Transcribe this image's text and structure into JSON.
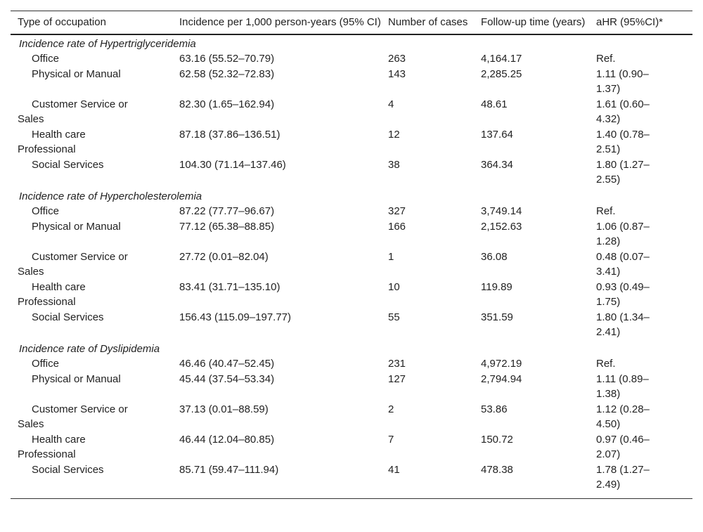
{
  "table": {
    "columns": [
      "Type of occupation",
      "Incidence per 1,000 person-years (95% CI)",
      "Number of cases",
      "Follow-up time (years)",
      "aHR (95%CI)*"
    ],
    "sections": [
      {
        "title": "Incidence rate of Hypertriglyceridemia",
        "rows": [
          [
            "Office",
            "63.16 (55.52–70.79)",
            "263",
            "4,164.17",
            "Ref."
          ],
          [
            "Physical or Manual",
            "62.58 (52.32–72.83)",
            "143",
            "2,285.25",
            "1.11 (0.90–1.37)"
          ],
          [
            "Customer Service or Sales",
            "82.30 (1.65–162.94)",
            "4",
            "48.61",
            "1.61 (0.60–4.32)"
          ],
          [
            "Health care Professional",
            "87.18 (37.86–136.51)",
            "12",
            "137.64",
            "1.40 (0.78–2.51)"
          ],
          [
            "Social Services",
            "104.30 (71.14–137.46)",
            "38",
            "364.34",
            "1.80 (1.27–2.55)"
          ]
        ]
      },
      {
        "title": "Incidence rate of Hypercholesterolemia",
        "rows": [
          [
            "Office",
            "87.22 (77.77–96.67)",
            "327",
            "3,749.14",
            "Ref."
          ],
          [
            "Physical or Manual",
            "77.12 (65.38–88.85)",
            "166",
            "2,152.63",
            "1.06 (0.87–1.28)"
          ],
          [
            "Customer Service or Sales",
            "27.72 (0.01–82.04)",
            "1",
            "36.08",
            "0.48 (0.07–3.41)"
          ],
          [
            "Health care Professional",
            "83.41 (31.71–135.10)",
            "10",
            "119.89",
            "0.93 (0.49–1.75)"
          ],
          [
            "Social Services",
            "156.43 (115.09–197.77)",
            "55",
            "351.59",
            "1.80 (1.34–2.41)"
          ]
        ]
      },
      {
        "title": "Incidence rate of Dyslipidemia",
        "rows": [
          [
            "Office",
            "46.46 (40.47–52.45)",
            "231",
            "4,972.19",
            "Ref."
          ],
          [
            "Physical or Manual",
            "45.44 (37.54–53.34)",
            "127",
            "2,794.94",
            "1.11 (0.89–1.38)"
          ],
          [
            "Customer Service or Sales",
            "37.13 (0.01–88.59)",
            "2",
            "53.86",
            "1.12 (0.28–4.50)"
          ],
          [
            "Health care Professional",
            "46.44 (12.04–80.85)",
            "7",
            "150.72",
            "0.97 (0.46–2.07)"
          ],
          [
            "Social Services",
            "85.71 (59.47–111.94)",
            "41",
            "478.38",
            "1.78 (1.27–2.49)"
          ]
        ]
      }
    ]
  }
}
